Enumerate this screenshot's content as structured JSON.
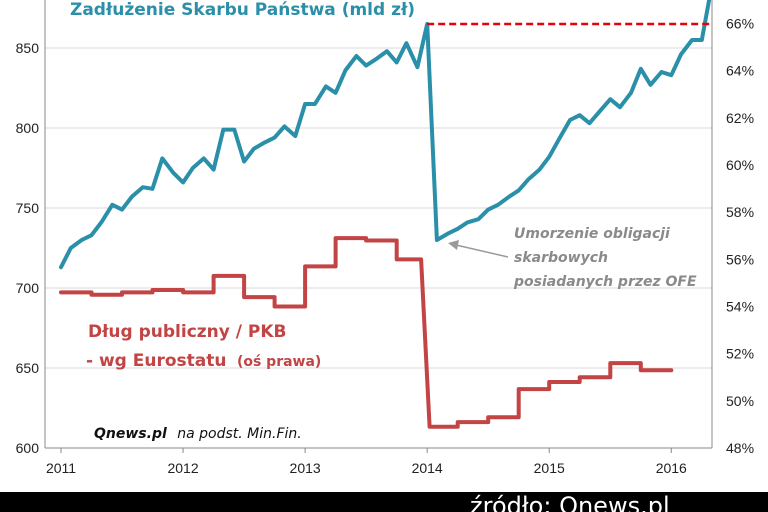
{
  "chart_data": {
    "type": "line",
    "titles": {
      "debt": "Zadłużenie Skarbu Państwa (mld zł)",
      "ratio_line1": "Dług publiczny / PKB",
      "ratio_line2": "- wg Eurostatu",
      "ratio_axis_note": "(oś prawa)"
    },
    "annotation": [
      "Umorzenie obligacji",
      "skarbowych",
      "posiadanych przez OFE"
    ],
    "source": {
      "bold": "Qnews.pl",
      "rest": "na podst. Min.Fin."
    },
    "x_axis": {
      "ticks": [
        2011,
        2012,
        2013,
        2014,
        2015,
        2016
      ],
      "labels": [
        "2011",
        "2012",
        "2013",
        "2014",
        "2015",
        "2016"
      ],
      "range": [
        2011.0,
        2016.35
      ]
    },
    "y_left": {
      "min": 600,
      "max": 880,
      "ticks": [
        600,
        650,
        700,
        750,
        800,
        850
      ],
      "labels": [
        "600",
        "650",
        "700",
        "750",
        "800",
        "850"
      ]
    },
    "y_right": {
      "min": 48,
      "max": 67,
      "ticks": [
        48,
        50,
        52,
        54,
        56,
        58,
        60,
        62,
        64,
        66
      ],
      "labels": [
        "48%",
        "50%",
        "52%",
        "54%",
        "56%",
        "58%",
        "60%",
        "62%",
        "64%",
        "66%"
      ]
    },
    "grid": "horizontal",
    "series": [
      {
        "name": "Zadłużenie Skarbu Państwa (mld zł)",
        "axis": "left",
        "color": "#2a8fa8",
        "points": [
          [
            2011.0,
            713
          ],
          [
            2011.08,
            725
          ],
          [
            2011.17,
            730
          ],
          [
            2011.25,
            733
          ],
          [
            2011.33,
            741
          ],
          [
            2011.42,
            752
          ],
          [
            2011.5,
            749
          ],
          [
            2011.58,
            757
          ],
          [
            2011.67,
            763
          ],
          [
            2011.75,
            762
          ],
          [
            2011.83,
            781
          ],
          [
            2011.92,
            772
          ],
          [
            2012.0,
            766
          ],
          [
            2012.08,
            775
          ],
          [
            2012.17,
            781
          ],
          [
            2012.25,
            774
          ],
          [
            2012.33,
            799
          ],
          [
            2012.42,
            799
          ],
          [
            2012.5,
            779
          ],
          [
            2012.58,
            787
          ],
          [
            2012.67,
            791
          ],
          [
            2012.75,
            794
          ],
          [
            2012.83,
            801
          ],
          [
            2012.92,
            795
          ],
          [
            2013.0,
            815
          ],
          [
            2013.08,
            815
          ],
          [
            2013.17,
            826
          ],
          [
            2013.25,
            822
          ],
          [
            2013.33,
            836
          ],
          [
            2013.42,
            845
          ],
          [
            2013.5,
            839
          ],
          [
            2013.58,
            843
          ],
          [
            2013.67,
            848
          ],
          [
            2013.75,
            841
          ],
          [
            2013.83,
            853
          ],
          [
            2013.92,
            838
          ],
          [
            2014.0,
            865
          ],
          [
            2014.08,
            730
          ],
          [
            2014.17,
            734
          ],
          [
            2014.25,
            737
          ],
          [
            2014.33,
            741
          ],
          [
            2014.42,
            743
          ],
          [
            2014.5,
            749
          ],
          [
            2014.58,
            752
          ],
          [
            2014.67,
            757
          ],
          [
            2014.75,
            761
          ],
          [
            2014.83,
            768
          ],
          [
            2014.92,
            774
          ],
          [
            2015.0,
            782
          ],
          [
            2015.08,
            793
          ],
          [
            2015.17,
            805
          ],
          [
            2015.25,
            808
          ],
          [
            2015.33,
            803
          ],
          [
            2015.42,
            811
          ],
          [
            2015.5,
            818
          ],
          [
            2015.58,
            813
          ],
          [
            2015.67,
            822
          ],
          [
            2015.75,
            837
          ],
          [
            2015.83,
            827
          ],
          [
            2015.92,
            835
          ],
          [
            2016.0,
            833
          ],
          [
            2016.08,
            846
          ],
          [
            2016.17,
            855
          ],
          [
            2016.25,
            855
          ],
          [
            2016.32,
            884
          ]
        ]
      },
      {
        "name": "Dług publiczny / PKB - wg Eurostatu",
        "axis": "right",
        "color": "#c24444",
        "points": [
          [
            2011.0,
            54.6
          ],
          [
            2011.25,
            54.6
          ],
          [
            2011.25,
            54.5
          ],
          [
            2011.5,
            54.5
          ],
          [
            2011.5,
            54.6
          ],
          [
            2011.75,
            54.6
          ],
          [
            2011.75,
            54.7
          ],
          [
            2012.0,
            54.7
          ],
          [
            2012.0,
            54.6
          ],
          [
            2012.25,
            54.6
          ],
          [
            2012.25,
            55.3
          ],
          [
            2012.5,
            55.3
          ],
          [
            2012.5,
            54.4
          ],
          [
            2012.75,
            54.4
          ],
          [
            2012.75,
            54.0
          ],
          [
            2013.0,
            54.0
          ],
          [
            2013.0,
            55.7
          ],
          [
            2013.25,
            55.7
          ],
          [
            2013.25,
            56.9
          ],
          [
            2013.5,
            56.9
          ],
          [
            2013.5,
            56.8
          ],
          [
            2013.75,
            56.8
          ],
          [
            2013.75,
            56.0
          ],
          [
            2013.95,
            56.0
          ],
          [
            2014.02,
            48.9
          ],
          [
            2014.25,
            48.9
          ],
          [
            2014.25,
            49.1
          ],
          [
            2014.5,
            49.1
          ],
          [
            2014.5,
            49.3
          ],
          [
            2014.75,
            49.3
          ],
          [
            2014.75,
            50.5
          ],
          [
            2015.0,
            50.5
          ],
          [
            2015.0,
            50.8
          ],
          [
            2015.25,
            50.8
          ],
          [
            2015.25,
            51.0
          ],
          [
            2015.5,
            51.0
          ],
          [
            2015.5,
            51.6
          ],
          [
            2015.75,
            51.6
          ],
          [
            2015.75,
            51.3
          ],
          [
            2016.0,
            51.3
          ]
        ]
      }
    ],
    "reference_line": {
      "color": "#e8000c",
      "style": "dashed",
      "axis": "left",
      "y": 865,
      "x_range": [
        2014.0,
        2016.32
      ]
    }
  },
  "footer": {
    "text": "źródło: Qnews.pl"
  }
}
